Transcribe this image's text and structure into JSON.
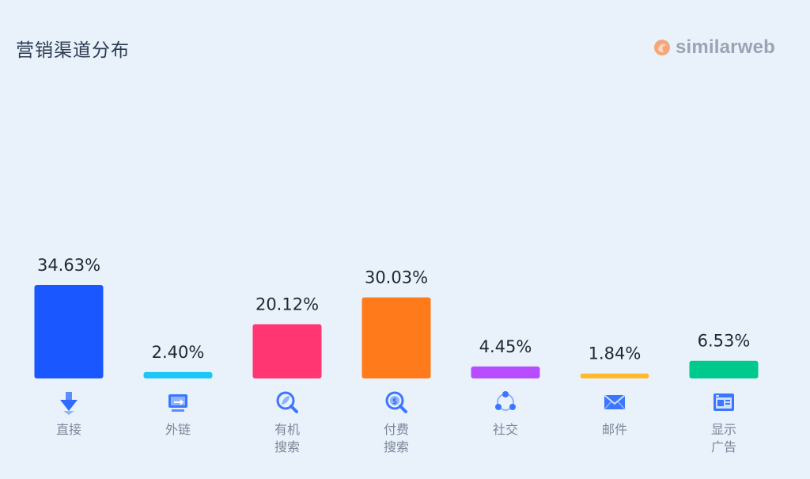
{
  "title": "营销渠道分布",
  "brand": {
    "name": "similarweb",
    "mark_icon": "similarweb-logo-icon",
    "text_color": "#9aa4b2",
    "mark_color": "#f4a77a"
  },
  "chart_data": {
    "type": "bar",
    "title": "营销渠道分布",
    "ylim": [
      0,
      40
    ],
    "grid": false,
    "legend": "none",
    "categories": [
      {
        "label_lines": [
          "直接"
        ],
        "icon": "direct-arrow-icon"
      },
      {
        "label_lines": [
          "外链"
        ],
        "icon": "referral-screen-icon"
      },
      {
        "label_lines": [
          "有机",
          "搜索"
        ],
        "icon": "organic-search-icon"
      },
      {
        "label_lines": [
          "付费",
          "搜索"
        ],
        "icon": "paid-search-icon"
      },
      {
        "label_lines": [
          "社交"
        ],
        "icon": "social-network-icon"
      },
      {
        "label_lines": [
          "邮件"
        ],
        "icon": "mail-envelope-icon"
      },
      {
        "label_lines": [
          "显示",
          "广告"
        ],
        "icon": "display-ads-icon"
      }
    ],
    "values": [
      34.63,
      2.4,
      20.12,
      30.03,
      4.45,
      1.84,
      6.53
    ],
    "value_labels": [
      "34.63%",
      "2.40%",
      "20.12%",
      "30.03%",
      "4.45%",
      "1.84%",
      "6.53%"
    ],
    "colors": [
      "#1a57ff",
      "#1ec6f5",
      "#ff3672",
      "#ff7a1a",
      "#b84cff",
      "#ffb92e",
      "#00c98d"
    ]
  }
}
